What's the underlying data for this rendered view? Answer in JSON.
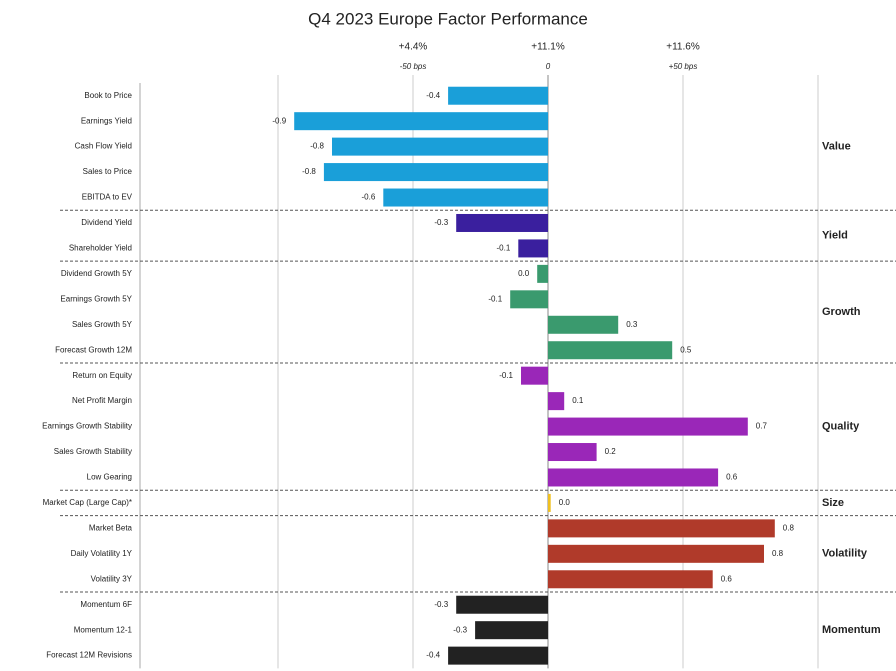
{
  "chart_data": {
    "type": "bar",
    "orientation": "horizontal",
    "title": "Q4 2023 Europe Factor Performance",
    "xlim": [
      -1,
      1
    ],
    "xticks": [
      {
        "value": -0.5,
        "label": "-50 bps"
      },
      0,
      {
        "value": 0.5,
        "label": "+50 bps"
      }
    ],
    "top_labels": [
      "+4.4%",
      "+11.1%",
      "+11.6%"
    ],
    "grid": true,
    "groups": [
      {
        "name": "Value",
        "color": "#1a9fd9",
        "categories": [
          "Book to Price",
          "Earnings Yield",
          "Cash Flow Yield",
          "Sales to Price",
          "EBITDA to EV"
        ],
        "values": [
          -0.37,
          -0.94,
          -0.8,
          -0.83,
          -0.61
        ],
        "value_labels": [
          "-0.4",
          "-0.9",
          "-0.8",
          "-0.8",
          "-0.6"
        ]
      },
      {
        "name": "Yield",
        "color": "#3a1f9e",
        "categories": [
          "Dividend Yield",
          "Shareholder Yield"
        ],
        "values": [
          -0.34,
          -0.11
        ],
        "value_labels": [
          "-0.3",
          "-0.1"
        ]
      },
      {
        "name": "Growth",
        "color": "#3a9a6e",
        "categories": [
          "Dividend Growth 5Y",
          "Earnings Growth 5Y",
          "Sales Growth 5Y",
          "Forecast Growth 12M"
        ],
        "values": [
          -0.04,
          -0.14,
          0.26,
          0.46
        ],
        "value_labels": [
          "0.0",
          "-0.1",
          "0.3",
          "0.5"
        ]
      },
      {
        "name": "Quality",
        "color": "#9a27b8",
        "categories": [
          "Return on Equity",
          "Net Profit Margin",
          "Earnings Growth Stability",
          "Sales Growth Stability",
          "Low Gearing"
        ],
        "values": [
          -0.1,
          0.06,
          0.74,
          0.18,
          0.63
        ],
        "value_labels": [
          "-0.1",
          "0.1",
          "0.7",
          "0.2",
          "0.6"
        ]
      },
      {
        "name": "Size",
        "color": "#f0c020",
        "categories": [
          "Market Cap (Large Cap)*"
        ],
        "values": [
          0.01
        ],
        "value_labels": [
          "0.0"
        ]
      },
      {
        "name": "Volatility",
        "color": "#b03a2a",
        "categories": [
          "Market Beta",
          "Daily Volatility 1Y",
          "Volatility 3Y"
        ],
        "values": [
          0.84,
          0.8,
          0.61
        ],
        "value_labels": [
          "0.8",
          "0.8",
          "0.6"
        ]
      },
      {
        "name": "Momentum",
        "color": "#222222",
        "categories": [
          "Momentum 6F",
          "Momentum 12-1",
          "Forecast 12M Revisions"
        ],
        "values": [
          -0.34,
          -0.27,
          -0.37
        ],
        "value_labels": [
          "-0.3",
          "-0.3",
          "-0.4"
        ]
      }
    ]
  }
}
